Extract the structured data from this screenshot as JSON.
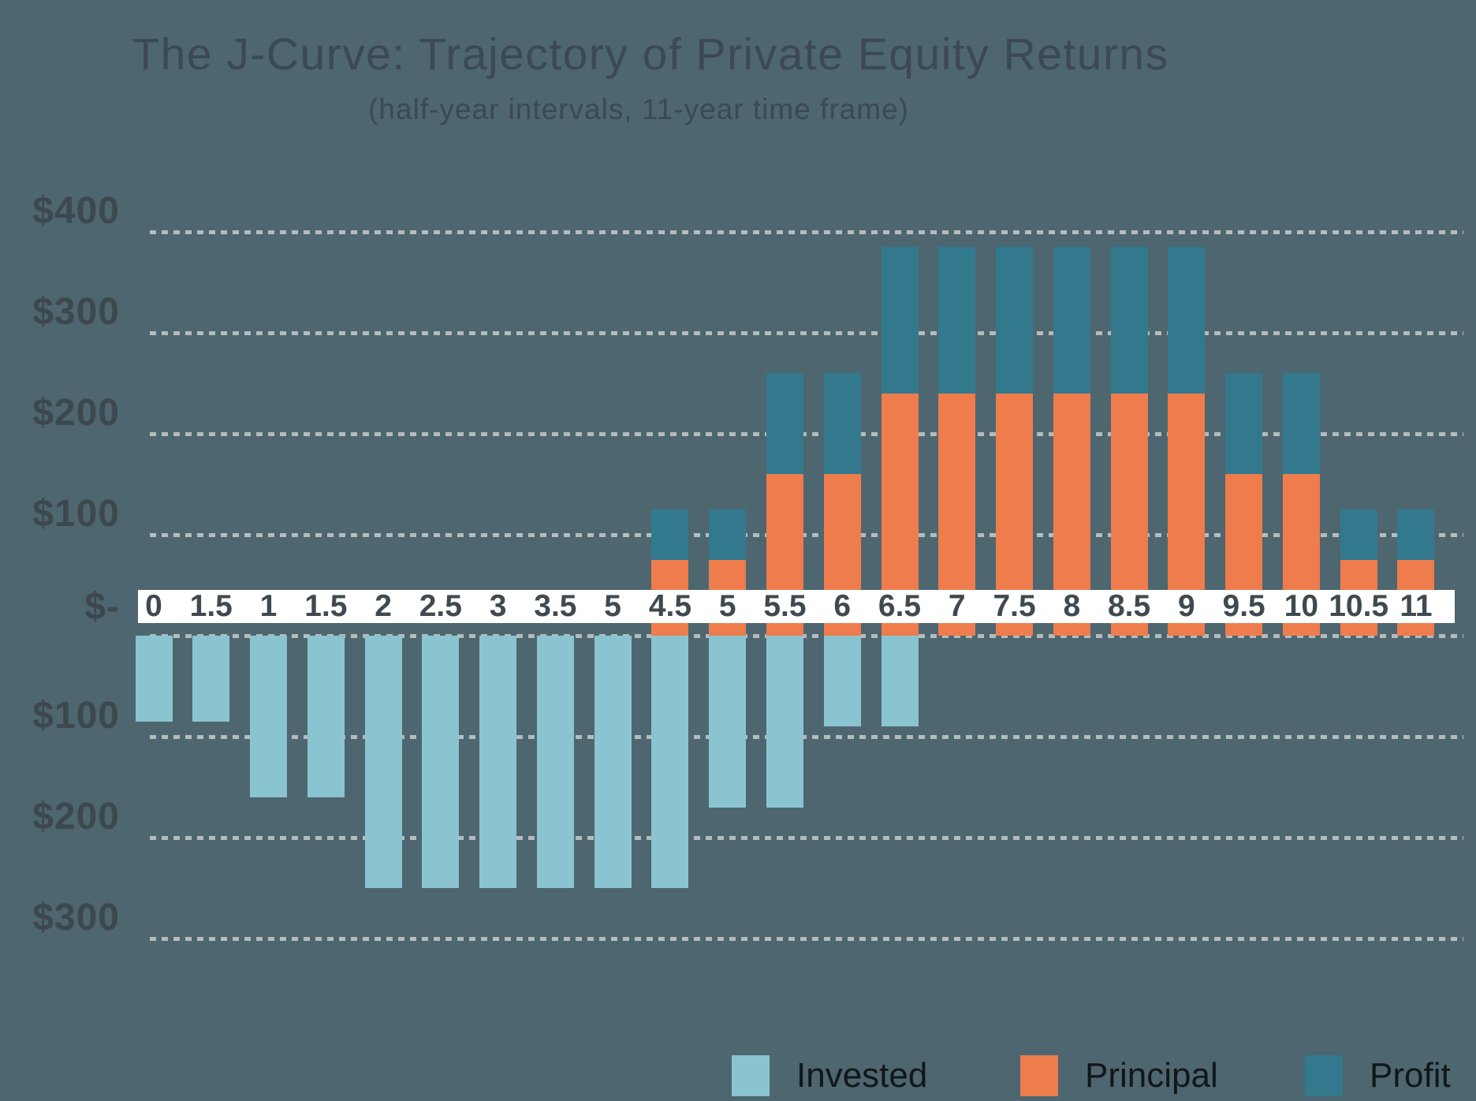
{
  "title": "The J-Curve: Trajectory of Private Equity Returns",
  "subtitle": "(half-year intervals, 11-year time frame)",
  "chart_data": {
    "type": "bar",
    "stacked": true,
    "orientation": "vertical",
    "categories": [
      "0",
      "1.5",
      "1",
      "1.5",
      "2",
      "2.5",
      "3",
      "3.5",
      "5",
      "4.5",
      "5",
      "5.5",
      "6",
      "6.5",
      "7",
      "7.5",
      "8",
      "8.5",
      "9",
      "9.5",
      "10",
      "10.5",
      "11"
    ],
    "series": [
      {
        "name": "Invested",
        "color": "#8BC4D1",
        "values": [
          -85,
          -85,
          -160,
          -160,
          -250,
          -250,
          -250,
          -250,
          -250,
          -250,
          -170,
          -170,
          -90,
          -90,
          0,
          0,
          0,
          0,
          0,
          0,
          0,
          0,
          0
        ]
      },
      {
        "name": "Principal",
        "color": "#EF7C4C",
        "values": [
          0,
          0,
          0,
          0,
          0,
          0,
          0,
          0,
          0,
          75,
          75,
          160,
          160,
          240,
          240,
          240,
          240,
          240,
          240,
          160,
          160,
          75,
          75
        ]
      },
      {
        "name": "Profit",
        "color": "#33798E",
        "values": [
          0,
          0,
          0,
          0,
          0,
          0,
          0,
          0,
          0,
          50,
          50,
          100,
          100,
          145,
          145,
          145,
          145,
          145,
          145,
          100,
          100,
          50,
          50
        ]
      }
    ],
    "ytick_labels": [
      "$400",
      "$300",
      "$200",
      "$100",
      "$-",
      "$100",
      "$200",
      "$300"
    ],
    "ytick_values": [
      400,
      300,
      200,
      100,
      0,
      -100,
      -200,
      -300
    ],
    "ylim": [
      -350,
      450
    ],
    "xlabel": "",
    "ylabel": "",
    "grid": "dashed-horizontal",
    "zero_axis_white_band": true,
    "legend_position": "bottom-right"
  },
  "legend": {
    "items": [
      {
        "label": "Invested",
        "color": "#8BC4D1"
      },
      {
        "label": "Principal",
        "color": "#EF7C4C"
      },
      {
        "label": "Profit",
        "color": "#33798E"
      }
    ]
  },
  "colors": {
    "background": "#4D6670",
    "invested": "#8BC4D1",
    "principal": "#EF7C4C",
    "profit": "#33798E",
    "gridline": "#B5BCBC",
    "axis_text": "#3D484E",
    "title_text": "#3C4852",
    "legend_text": "#131619",
    "axis_band": "#FFFFFF"
  }
}
